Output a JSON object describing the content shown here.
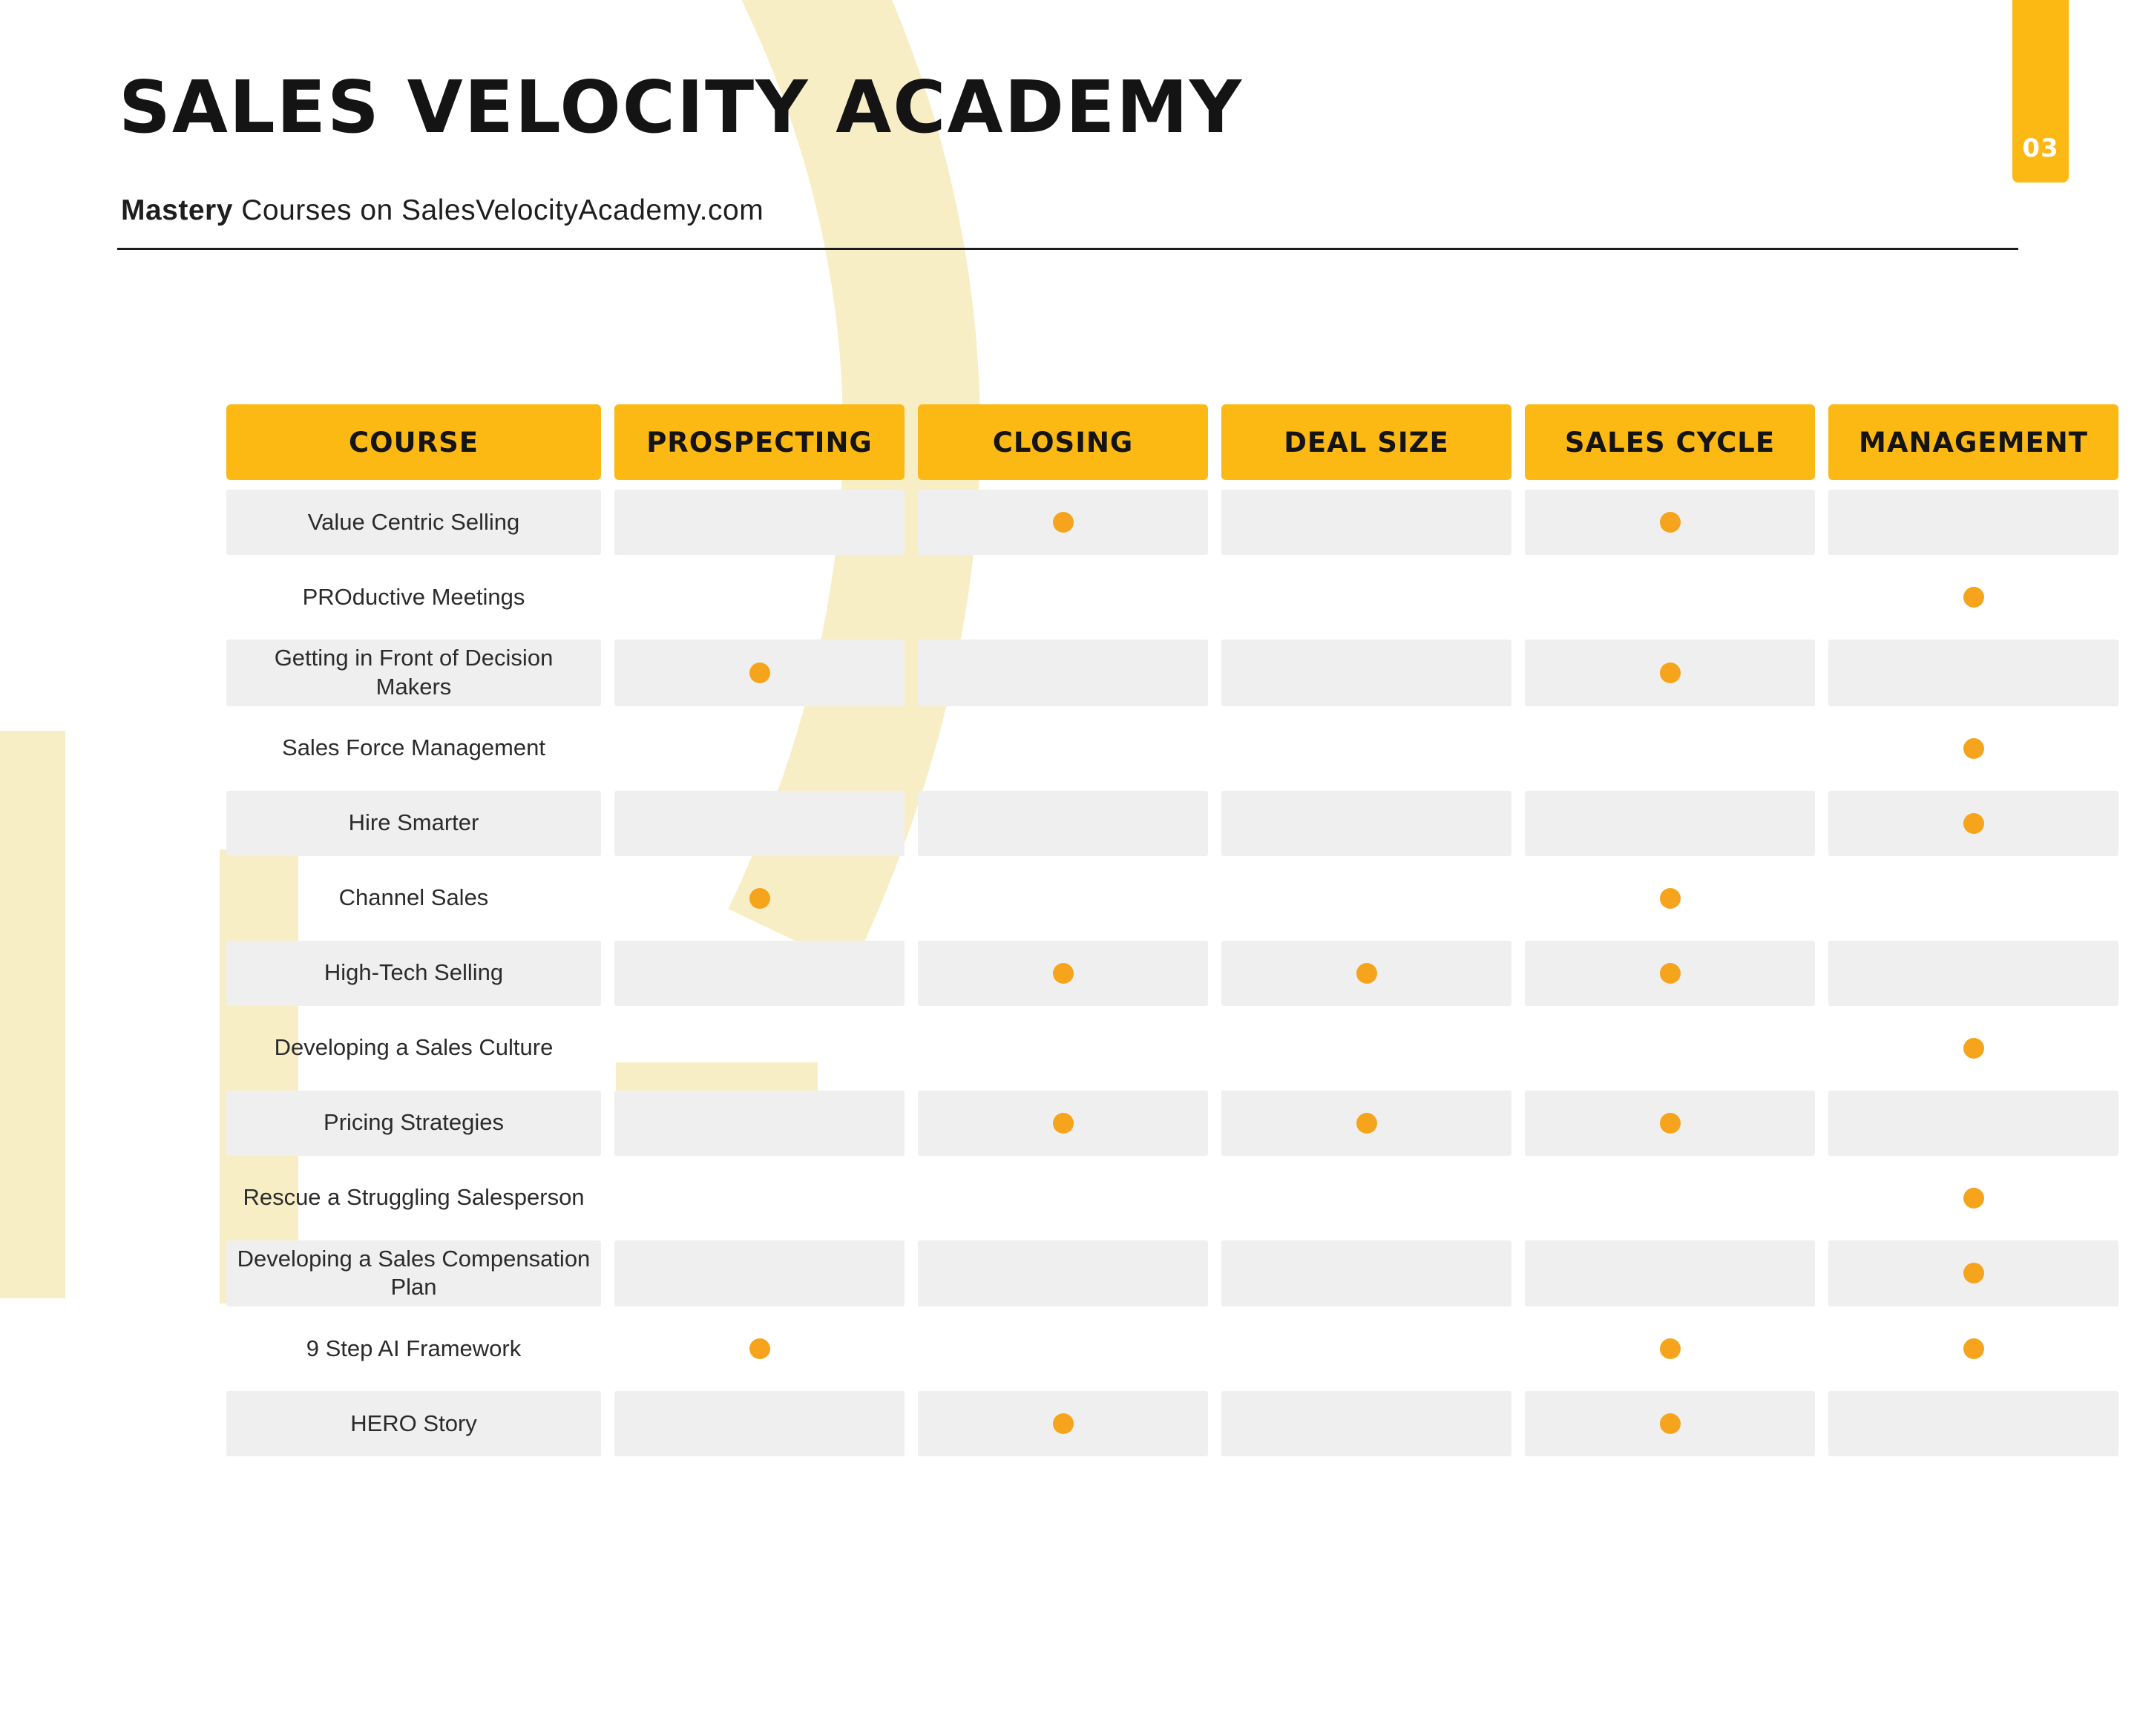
{
  "page": {
    "title": "SALES VELOCITY ACADEMY",
    "subtitle": {
      "bold": "Mastery",
      "rest": " Courses on SalesVelocityAcademy.com"
    },
    "page_number": "03"
  },
  "colors": {
    "header_yellow": "#FCB813",
    "dot_orange": "#F5A41C",
    "row_shade": "#EFEFEF",
    "decoration": "#F8EEC6",
    "text": "#141414"
  },
  "table": {
    "columns": [
      "COURSE",
      "PROSPECTING",
      "CLOSING",
      "DEAL SIZE",
      "SALES CYCLE",
      "MANAGEMENT"
    ],
    "rows": [
      {
        "course": "Value Centric Selling",
        "marks": [
          0,
          1,
          0,
          1,
          0
        ]
      },
      {
        "course": "PROductive Meetings",
        "marks": [
          0,
          0,
          0,
          0,
          1
        ]
      },
      {
        "course": "Getting in Front of Decision Makers",
        "marks": [
          1,
          0,
          0,
          1,
          0
        ]
      },
      {
        "course": "Sales Force Management",
        "marks": [
          0,
          0,
          0,
          0,
          1
        ]
      },
      {
        "course": "Hire Smarter",
        "marks": [
          0,
          0,
          0,
          0,
          1
        ]
      },
      {
        "course": "Channel Sales",
        "marks": [
          1,
          0,
          0,
          1,
          0
        ]
      },
      {
        "course": "High-Tech Selling",
        "marks": [
          0,
          1,
          1,
          1,
          0
        ]
      },
      {
        "course": "Developing a Sales Culture",
        "marks": [
          0,
          0,
          0,
          0,
          1
        ]
      },
      {
        "course": "Pricing Strategies",
        "marks": [
          0,
          1,
          1,
          1,
          0
        ]
      },
      {
        "course": "Rescue a Struggling Salesperson",
        "marks": [
          0,
          0,
          0,
          0,
          1
        ]
      },
      {
        "course": "Developing a Sales Compensation Plan",
        "marks": [
          0,
          0,
          0,
          0,
          1
        ]
      },
      {
        "course": "9 Step AI Framework",
        "marks": [
          1,
          0,
          0,
          1,
          1
        ]
      },
      {
        "course": "HERO Story",
        "marks": [
          0,
          1,
          0,
          1,
          0
        ]
      }
    ]
  }
}
